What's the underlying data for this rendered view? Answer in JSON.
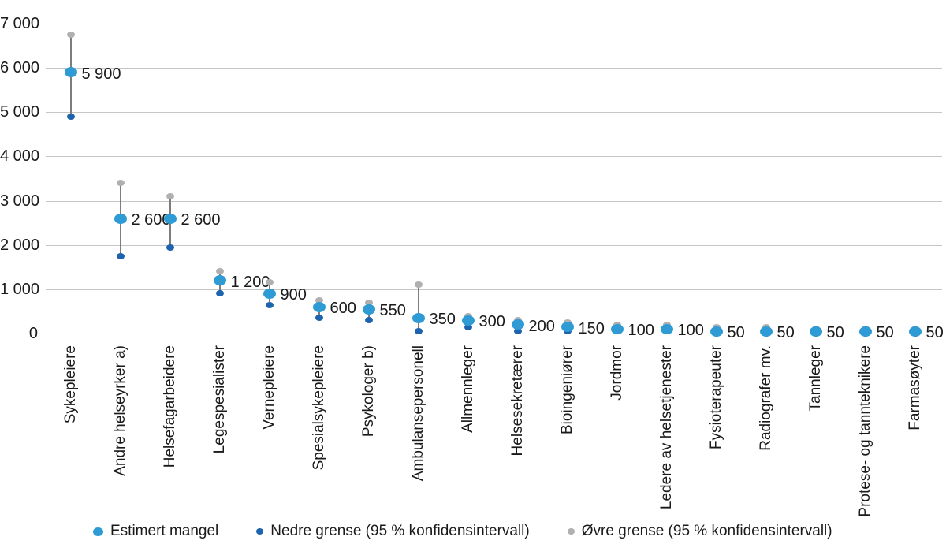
{
  "chart_data": {
    "type": "scatter",
    "title": "",
    "xlabel": "",
    "ylabel": "",
    "ylim": [
      0,
      7000
    ],
    "grid": true,
    "legend_position": "bottom",
    "categories": [
      "Sykepleiere",
      "Andre helseyrker a)",
      "Helsefagarbeidere",
      "Legespesialister",
      "Vernepleiere",
      "Spesialsykepleiere",
      "Psykologer b)",
      "Ambulansepersonell",
      "Allmennleger",
      "Helsesekretærer",
      "Bioingeniører",
      "Jordmor",
      "Ledere av helsetjenester",
      "Fysioterapeuter",
      "Radiografer mv.",
      "Tannleger",
      "Protese- og tannteknikere",
      "Farmasøyter"
    ],
    "series": [
      {
        "name": "Estimert mangel",
        "color": "#2e9bd5",
        "values": [
          5900,
          2600,
          2600,
          1200,
          900,
          600,
          550,
          350,
          300,
          200,
          150,
          100,
          100,
          50,
          50,
          50,
          50,
          50
        ]
      },
      {
        "name": "Nedre grense (95 % konfidensintervall)",
        "color": "#1e63ae",
        "values": [
          4900,
          1750,
          1950,
          900,
          650,
          350,
          300,
          50,
          150,
          50,
          50,
          50,
          50,
          0,
          0,
          0,
          0,
          0
        ]
      },
      {
        "name": "Øvre grense (95 % konfidensintervall)",
        "color": "#b0b0b0",
        "values": [
          6750,
          3400,
          3100,
          1400,
          1150,
          750,
          700,
          1100,
          400,
          300,
          250,
          200,
          200,
          150,
          150,
          100,
          100,
          100
        ]
      }
    ],
    "data_labels": [
      "5 900",
      "2 600",
      "2 600",
      "1 200",
      "900",
      "600",
      "550",
      "350",
      "300",
      "200",
      "150",
      "100",
      "100",
      "50",
      "50",
      "50",
      "50",
      "50"
    ],
    "y_ticks": [
      {
        "value": 0,
        "label": "0"
      },
      {
        "value": 1000,
        "label": "1 000"
      },
      {
        "value": 2000,
        "label": "2 000"
      },
      {
        "value": 3000,
        "label": "3 000"
      },
      {
        "value": 4000,
        "label": "4 000"
      },
      {
        "value": 5000,
        "label": "5 000"
      },
      {
        "value": 6000,
        "label": "6 000"
      },
      {
        "value": 7000,
        "label": "7 000"
      }
    ]
  },
  "colors": {
    "gridline": "#c6c6c6",
    "axis_line": "#9b9b9b",
    "error_bar": "#7d7d7d",
    "text": "#1a1a1a"
  }
}
